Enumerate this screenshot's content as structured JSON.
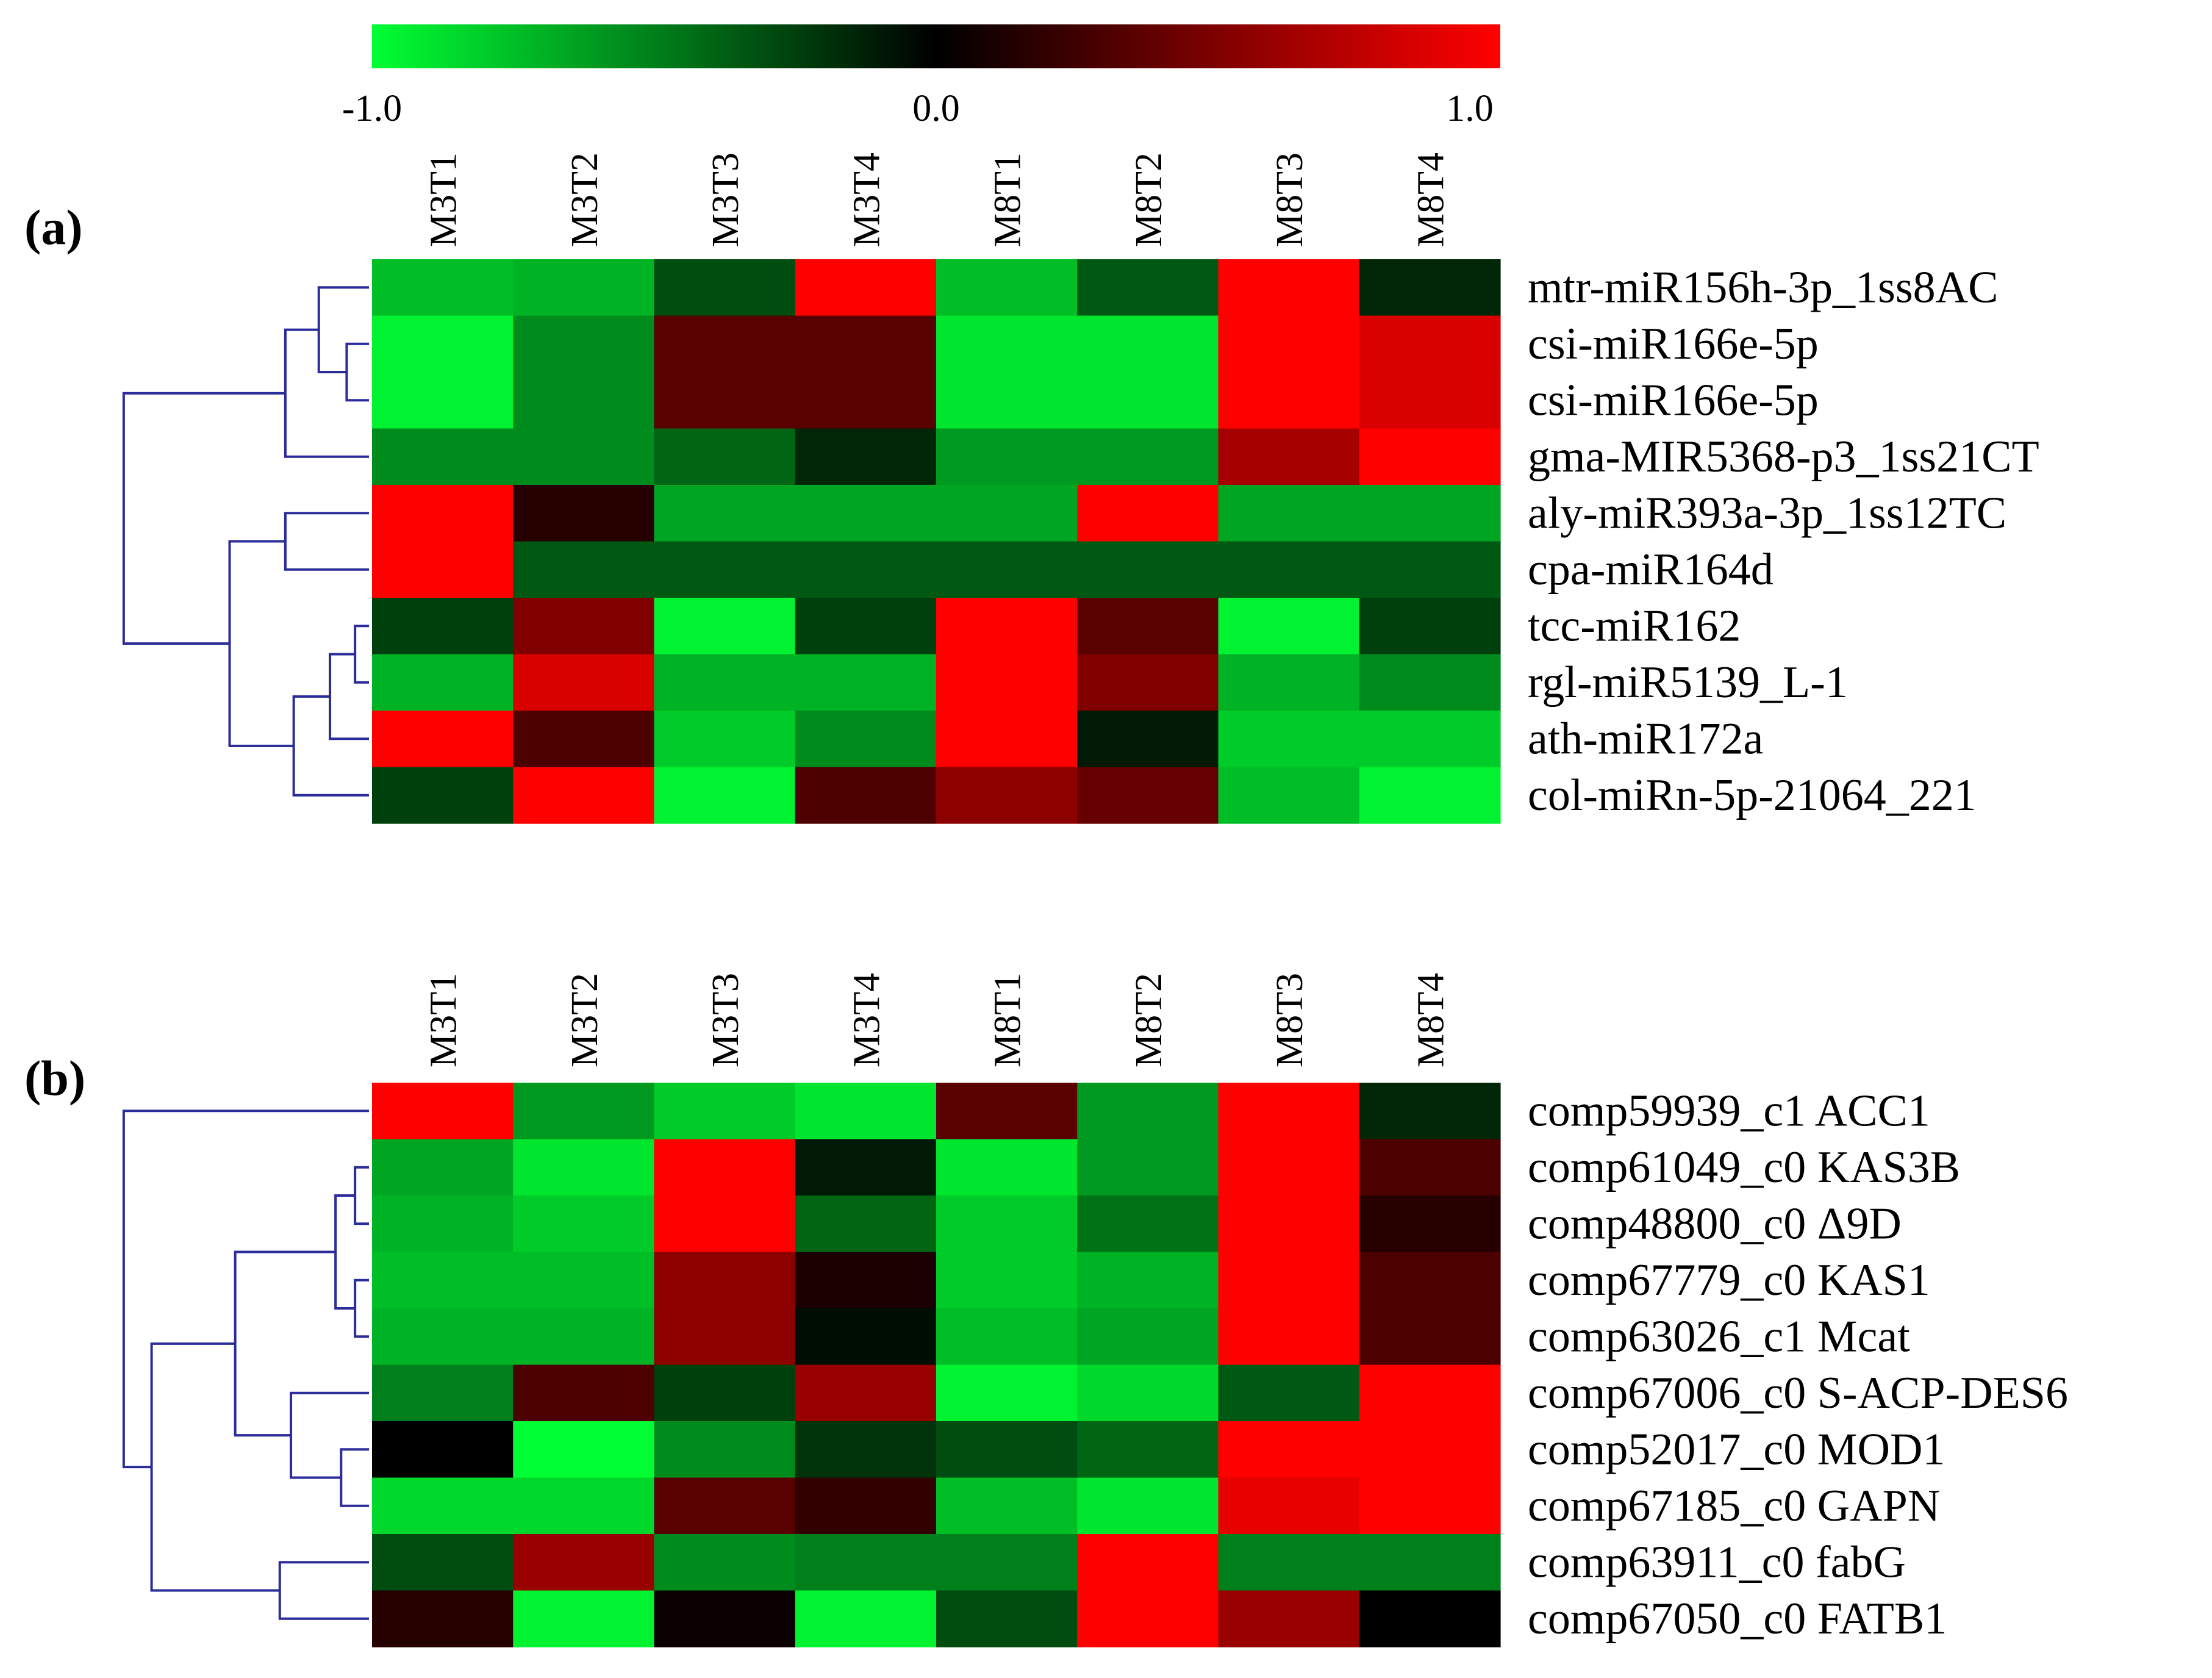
{
  "chart_data": [
    {
      "type": "heatmap",
      "panel_label": "(a)",
      "color_scale": {
        "min": -1.0,
        "mid": 0.0,
        "max": 1.0,
        "tick_labels": [
          "-1.0",
          "0.0",
          "1.0"
        ],
        "colors": {
          "low": "#00ff33",
          "mid": "#000000",
          "high": "#ff0000"
        }
      },
      "columns": [
        "M3T1",
        "M3T2",
        "M3T3",
        "M3T4",
        "M8T1",
        "M8T2",
        "M8T3",
        "M8T4"
      ],
      "rows": [
        "mtr-miR156h-3p_1ss8AC",
        "csi-miR166e-5p",
        "csi-miR166e-5p",
        "gma-MIR5368-p3_1ss21CT",
        "aly-miR393a-3p_1ss12TC",
        "cpa-miR164d",
        "tcc-miR162",
        "rgl-miR5139_L-1",
        "ath-miR172a",
        "col-miRn-5p-21064_221"
      ],
      "values": [
        [
          -0.75,
          -0.7,
          -0.3,
          1.0,
          -0.75,
          -0.35,
          1.0,
          -0.15
        ],
        [
          -0.95,
          -0.55,
          0.35,
          0.35,
          -0.9,
          -0.9,
          1.0,
          0.85
        ],
        [
          -0.95,
          -0.55,
          0.35,
          0.35,
          -0.9,
          -0.9,
          1.0,
          0.85
        ],
        [
          -0.55,
          -0.55,
          -0.4,
          -0.15,
          -0.6,
          -0.6,
          0.65,
          1.0
        ],
        [
          1.0,
          0.15,
          -0.65,
          -0.65,
          -0.65,
          1.0,
          -0.65,
          -0.65
        ],
        [
          1.0,
          -0.35,
          -0.35,
          -0.35,
          -0.35,
          -0.35,
          -0.35,
          -0.35
        ],
        [
          -0.25,
          0.5,
          -0.95,
          -0.25,
          1.0,
          0.35,
          -0.95,
          -0.25
        ],
        [
          -0.7,
          0.85,
          -0.7,
          -0.7,
          1.0,
          0.5,
          -0.7,
          -0.55
        ],
        [
          1.0,
          0.3,
          -0.8,
          -0.55,
          1.0,
          -0.1,
          -0.8,
          -0.8
        ],
        [
          -0.25,
          1.0,
          -0.95,
          0.3,
          0.55,
          0.4,
          -0.75,
          -0.95
        ]
      ],
      "row_dendrogram": [
        {
          "a": [
            1
          ],
          "b": [
            2
          ],
          "h": 0.08
        },
        {
          "a": [
            0
          ],
          "b": [
            1,
            2
          ],
          "h": 0.18
        },
        {
          "a": [
            0,
            1,
            2
          ],
          "b": [
            3
          ],
          "h": 0.3
        },
        {
          "a": [
            4
          ],
          "b": [
            5
          ],
          "h": 0.3
        },
        {
          "a": [
            6
          ],
          "b": [
            7
          ],
          "h": 0.05
        },
        {
          "a": [
            6,
            7
          ],
          "b": [
            8
          ],
          "h": 0.14
        },
        {
          "a": [
            6,
            7,
            8
          ],
          "b": [
            9
          ],
          "h": 0.27
        },
        {
          "a": [
            4,
            5
          ],
          "b": [
            6,
            7,
            8,
            9
          ],
          "h": 0.5
        },
        {
          "a": [
            0,
            1,
            2,
            3
          ],
          "b": [
            4,
            5,
            6,
            7,
            8,
            9
          ],
          "h": 0.88
        }
      ]
    },
    {
      "type": "heatmap",
      "panel_label": "(b)",
      "columns": [
        "M3T1",
        "M3T2",
        "M3T3",
        "M3T4",
        "M8T1",
        "M8T2",
        "M8T3",
        "M8T4"
      ],
      "rows": [
        "comp59939_c1 ACC1",
        "comp61049_c0 KAS3B",
        "comp48800_c0 Δ9D",
        "comp67779_c0 KAS1",
        "comp63026_c1 Mcat",
        "comp67006_c0 S-ACP-DES6",
        "comp52017_c0 MOD1",
        "comp67185_c0 GAPN",
        "comp63911_c0 fabG",
        "comp67050_c0 FATB1"
      ],
      "values": [
        [
          1.0,
          -0.6,
          -0.8,
          -0.9,
          0.35,
          -0.6,
          1.0,
          -0.15
        ],
        [
          -0.65,
          -0.9,
          1.0,
          -0.1,
          -0.9,
          -0.6,
          1.0,
          0.3
        ],
        [
          -0.7,
          -0.8,
          1.0,
          -0.4,
          -0.8,
          -0.45,
          1.0,
          0.15
        ],
        [
          -0.75,
          -0.75,
          0.55,
          0.1,
          -0.8,
          -0.7,
          1.0,
          0.3
        ],
        [
          -0.7,
          -0.7,
          0.55,
          -0.05,
          -0.75,
          -0.65,
          1.0,
          0.3
        ],
        [
          -0.5,
          0.3,
          -0.25,
          0.6,
          -0.95,
          -0.85,
          -0.35,
          1.0
        ],
        [
          0.0,
          -1.0,
          -0.55,
          -0.2,
          -0.3,
          -0.4,
          1.0,
          1.0
        ],
        [
          -0.85,
          -0.85,
          0.35,
          0.2,
          -0.75,
          -0.9,
          0.9,
          1.0
        ],
        [
          -0.3,
          0.6,
          -0.55,
          -0.5,
          -0.5,
          1.0,
          -0.5,
          -0.5
        ],
        [
          0.15,
          -0.95,
          0.05,
          -0.95,
          -0.3,
          1.0,
          0.6,
          0.0
        ]
      ],
      "row_dendrogram": [
        {
          "a": [
            1
          ],
          "b": [
            2
          ],
          "h": 0.05
        },
        {
          "a": [
            3
          ],
          "b": [
            4
          ],
          "h": 0.05
        },
        {
          "a": [
            1,
            2
          ],
          "b": [
            3,
            4
          ],
          "h": 0.12
        },
        {
          "a": [
            6
          ],
          "b": [
            7
          ],
          "h": 0.1
        },
        {
          "a": [
            5
          ],
          "b": [
            6,
            7
          ],
          "h": 0.28
        },
        {
          "a": [
            1,
            2,
            3,
            4
          ],
          "b": [
            5,
            6,
            7
          ],
          "h": 0.48
        },
        {
          "a": [
            8
          ],
          "b": [
            9
          ],
          "h": 0.32
        },
        {
          "a": [
            1,
            2,
            3,
            4,
            5,
            6,
            7
          ],
          "b": [
            8,
            9
          ],
          "h": 0.78
        },
        {
          "a": [
            0
          ],
          "b": [
            1,
            2,
            3,
            4,
            5,
            6,
            7,
            8,
            9
          ],
          "h": 0.88
        }
      ]
    }
  ]
}
